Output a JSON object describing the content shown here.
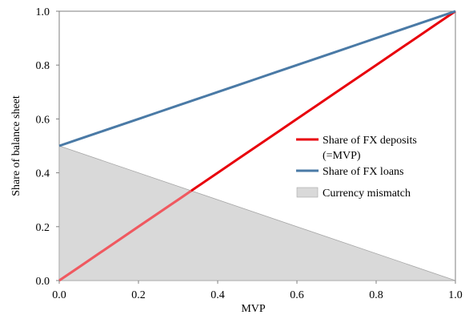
{
  "chart_data": {
    "type": "line",
    "title": "",
    "xlabel": "MVP",
    "ylabel": "Share of balance sheet",
    "xlim": [
      0.0,
      1.0
    ],
    "ylim": [
      0.0,
      1.0
    ],
    "grid": false,
    "x_ticks": [
      "0.0",
      "0.2",
      "0.4",
      "0.6",
      "0.8",
      "1.0"
    ],
    "y_ticks": [
      "0.0",
      "0.2",
      "0.4",
      "0.6",
      "0.8",
      "1.0"
    ],
    "legend_position": "right",
    "series": [
      {
        "name": "Share of FX deposits (=MVP)",
        "legend_lines": [
          "Share of FX deposits",
          "(=MVP)"
        ],
        "type": "line",
        "color": "#e8000b",
        "x": [
          0,
          0.05,
          0.1,
          0.15,
          0.2,
          0.25,
          0.3,
          0.35,
          0.4,
          0.45,
          0.5,
          0.55,
          0.6,
          0.65,
          0.7,
          0.75,
          0.8,
          0.85,
          0.9,
          0.95,
          1.0
        ],
        "values": [
          0,
          0.05,
          0.1,
          0.15,
          0.2,
          0.25,
          0.3,
          0.35,
          0.4,
          0.45,
          0.5,
          0.55,
          0.6,
          0.65,
          0.7,
          0.75,
          0.8,
          0.85,
          0.9,
          0.95,
          1.0
        ]
      },
      {
        "name": "Share of FX loans",
        "type": "line",
        "color": "#4a7aa6",
        "x": [
          0,
          0.05,
          0.1,
          0.15,
          0.2,
          0.25,
          0.3,
          0.35,
          0.4,
          0.45,
          0.5,
          0.55,
          0.6,
          0.65,
          0.7,
          0.75,
          0.8,
          0.85,
          0.9,
          0.95,
          1.0
        ],
        "values": [
          0.5,
          0.525,
          0.55,
          0.575,
          0.6,
          0.625,
          0.65,
          0.675,
          0.7,
          0.725,
          0.75,
          0.775,
          0.8,
          0.825,
          0.85,
          0.875,
          0.9,
          0.925,
          0.95,
          0.975,
          1.0
        ]
      },
      {
        "name": "Currency mismatch",
        "type": "area",
        "color": "#d9d9d9",
        "x": [
          0,
          1.0
        ],
        "values": [
          0.5,
          0
        ]
      }
    ]
  }
}
